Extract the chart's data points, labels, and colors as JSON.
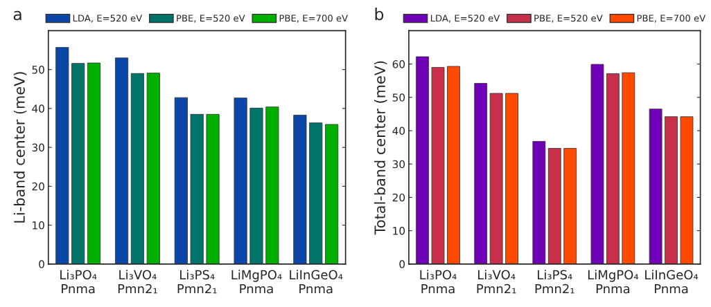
{
  "chart_data": [
    {
      "type": "bar",
      "title": "a",
      "ylabel": "Li-band center (meV)",
      "categories": [
        "Li₃PO₄\nPnma",
        "Li₃VO₄\nPmn2₁",
        "Li₃PS₄\nPmn2₁",
        "LiMgPO₄\nPnma",
        "LiInGeO₄\nPnma"
      ],
      "series": [
        {
          "name": "LDA, E=520 eV",
          "color": "#0a47a9",
          "values": [
            55.7,
            53.0,
            42.8,
            42.7,
            38.3
          ]
        },
        {
          "name": "PBE, E=520 eV",
          "color": "#00736a",
          "values": [
            51.6,
            49.0,
            38.5,
            40.1,
            36.3
          ]
        },
        {
          "name": "PBE, E=700 eV",
          "color": "#00b000",
          "values": [
            51.7,
            49.1,
            38.5,
            40.4,
            35.9
          ]
        }
      ],
      "ylim": [
        0,
        60
      ],
      "yticks": [
        0,
        10,
        20,
        30,
        40,
        50
      ],
      "grid": false,
      "legend": "top"
    },
    {
      "type": "bar",
      "title": "b",
      "ylabel": "Total-band center (meV)",
      "categories": [
        "Li₃PO₄\nPnma",
        "Li₃VO₄\nPmn2₁",
        "Li₃PS₄\nPmn2₁",
        "LiMgPO₄\nPnma",
        "LiInGeO₄\nPnma"
      ],
      "series": [
        {
          "name": "LDA, E=520 eV",
          "color": "#7000b8",
          "values": [
            62.2,
            54.2,
            36.8,
            59.9,
            46.5
          ]
        },
        {
          "name": "PBE, E=520 eV",
          "color": "#c8304a",
          "values": [
            59.0,
            51.2,
            34.7,
            57.1,
            44.2
          ]
        },
        {
          "name": "PBE, E=700 eV",
          "color": "#ff4a00",
          "values": [
            59.3,
            51.2,
            34.7,
            57.4,
            44.2
          ]
        }
      ],
      "ylim": [
        0,
        70
      ],
      "yticks": [
        0,
        10,
        20,
        30,
        40,
        50,
        60
      ],
      "grid": false,
      "legend": "top"
    }
  ]
}
